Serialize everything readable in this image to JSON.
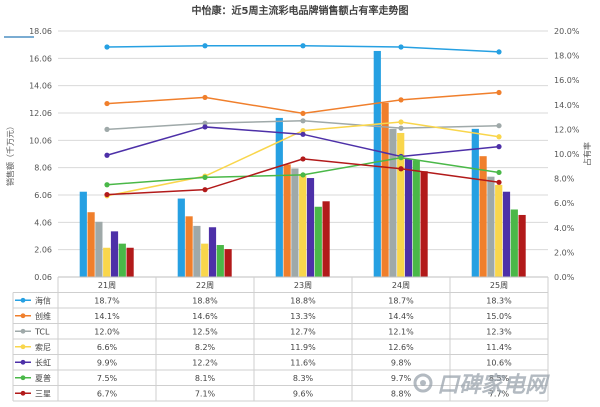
{
  "chart_data": {
    "type": "bar",
    "title": "中怡康：近5周主流彩电品牌销售额占有率走势图",
    "categories": [
      "21周",
      "22周",
      "23周",
      "24周",
      "25周"
    ],
    "ylabel_left": "销售额（千万元）",
    "ylabel_right": "占有率",
    "ylim_left": [
      0.06,
      18.06
    ],
    "ylim_right": [
      0,
      20
    ],
    "left_ticks": [
      "0.06",
      "2.06",
      "4.06",
      "6.06",
      "8.06",
      "10.06",
      "12.06",
      "14.06",
      "16.06",
      "18.06"
    ],
    "right_ticks": [
      "0.0%",
      "2.0%",
      "4.0%",
      "6.0%",
      "8.0%",
      "10.0%",
      "12.0%",
      "14.0%",
      "16.0%",
      "18.0%",
      "20.0%"
    ],
    "grid": true,
    "legend_placement": "data-table-left",
    "series": [
      {
        "name": "海信",
        "color": "#26a0e2",
        "bars": [
          6.3,
          5.8,
          11.7,
          16.6,
          10.9
        ],
        "share": [
          18.7,
          18.8,
          18.8,
          18.7,
          18.3
        ],
        "share_labels": [
          "18.7%",
          "18.8%",
          "18.8%",
          "18.7%",
          "18.3%"
        ]
      },
      {
        "name": "创维",
        "color": "#f07f2c",
        "bars": [
          4.8,
          4.5,
          8.3,
          12.8,
          8.9
        ],
        "share": [
          14.1,
          14.6,
          13.3,
          14.4,
          15.0
        ],
        "share_labels": [
          "14.1%",
          "14.6%",
          "13.3%",
          "14.4%",
          "15.0%"
        ]
      },
      {
        "name": "TCL",
        "color": "#9fa9a9",
        "bars": [
          4.1,
          3.8,
          8.0,
          10.9,
          7.4
        ],
        "share": [
          12.0,
          12.5,
          12.7,
          12.1,
          12.3
        ],
        "share_labels": [
          "12.0%",
          "12.5%",
          "12.7%",
          "12.1%",
          "12.3%"
        ]
      },
      {
        "name": "索尼",
        "color": "#f9d64c",
        "bars": [
          2.2,
          2.5,
          7.6,
          10.6,
          6.8
        ],
        "share": [
          6.6,
          8.2,
          11.9,
          12.6,
          11.4
        ],
        "share_labels": [
          "6.6%",
          "8.2%",
          "11.9%",
          "12.6%",
          "11.4%"
        ]
      },
      {
        "name": "长虹",
        "color": "#4d30a8",
        "bars": [
          3.4,
          3.7,
          7.3,
          8.7,
          6.3
        ],
        "share": [
          9.9,
          12.2,
          11.6,
          9.8,
          10.6
        ],
        "share_labels": [
          "9.9%",
          "12.2%",
          "11.6%",
          "9.8%",
          "10.6%"
        ]
      },
      {
        "name": "夏普",
        "color": "#4ab848",
        "bars": [
          2.5,
          2.4,
          5.2,
          8.6,
          5.0
        ],
        "share": [
          7.5,
          8.1,
          8.3,
          9.7,
          8.5
        ],
        "share_labels": [
          "7.5%",
          "8.1%",
          "8.3%",
          "9.7%",
          "8.5%"
        ]
      },
      {
        "name": "三星",
        "color": "#b21a1a",
        "bars": [
          2.2,
          2.1,
          5.6,
          7.8,
          4.6
        ],
        "share": [
          6.7,
          7.1,
          9.6,
          8.8,
          7.7
        ],
        "share_labels": [
          "6.7%",
          "7.1%",
          "9.6%",
          "8.8%",
          "7.7%"
        ]
      }
    ]
  },
  "watermark": "口碑家电网"
}
